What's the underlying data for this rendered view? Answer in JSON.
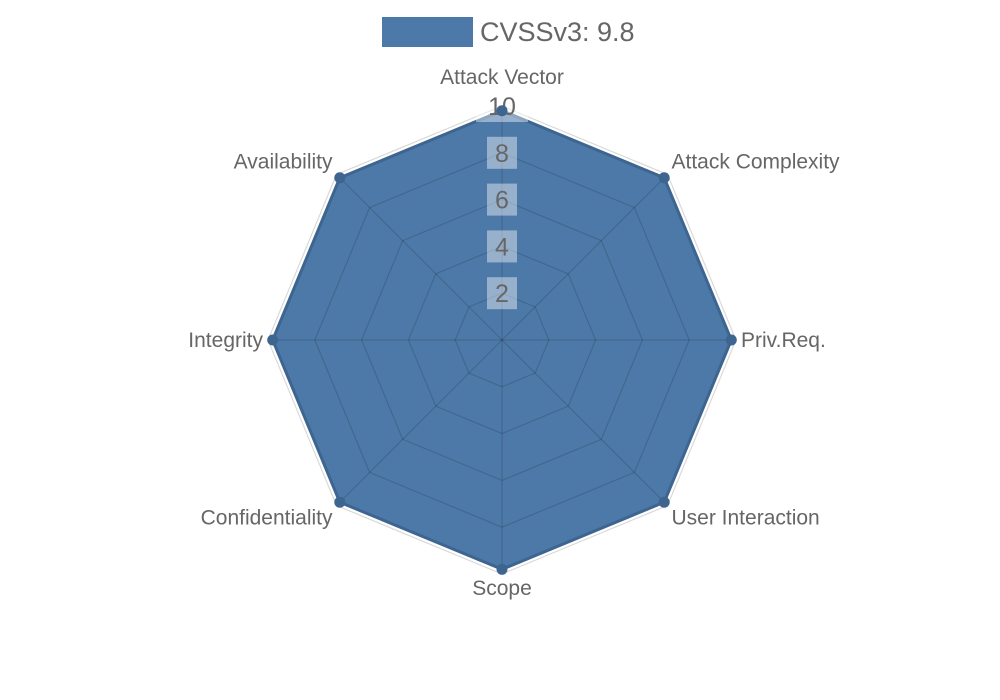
{
  "chart_data": {
    "type": "radar",
    "legend_label": "CVSSv3: 9.8",
    "legend_position": "top",
    "categories": [
      "Attack Vector",
      "Attack Complexity",
      "Priv.Req.",
      "User Interaction",
      "Scope",
      "Confidentiality",
      "Integrity",
      "Availability"
    ],
    "series": [
      {
        "name": "CVSSv3: 9.8",
        "values": [
          9.8,
          9.8,
          9.8,
          9.8,
          9.8,
          9.8,
          9.8,
          9.8
        ]
      }
    ],
    "scale": {
      "min": 0,
      "max": 10,
      "ticks": [
        2,
        4,
        6,
        8,
        10
      ]
    },
    "grid": "on",
    "colors": {
      "fill": "#4d79a8",
      "border": "#3d6590",
      "point": "#3d6590",
      "grid_line": "rgba(0,0,0,0.15)",
      "tick_backdrop": "rgba(255,255,255,0.42)",
      "text": "#666666"
    }
  }
}
